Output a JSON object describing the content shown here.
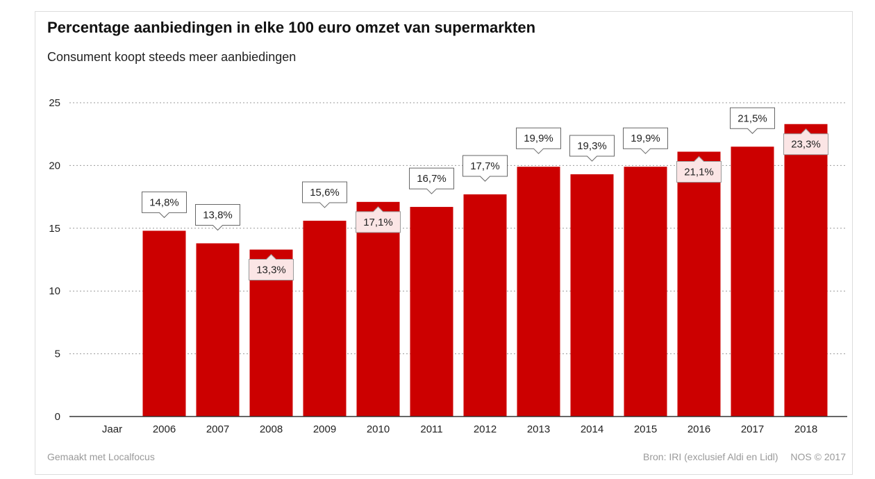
{
  "header": {
    "title": "Percentage aanbiedingen in elke 100 euro omzet van supermarkten",
    "subtitle": "Consument koopt steeds meer aanbiedingen"
  },
  "footer": {
    "made_with": "Gemaakt met Localfocus",
    "source": "Bron: IRI (exclusief Aldi en Lidl)",
    "copyright": "NOS © 2017"
  },
  "colors": {
    "bar": "#cc0000",
    "label_box_outside": "#ffffff",
    "label_box_inside": "#fbe5e5",
    "grid": "#999999"
  },
  "chart_data": {
    "type": "bar",
    "first_tick_label": "Jaar",
    "categories": [
      "2006",
      "2007",
      "2008",
      "2009",
      "2010",
      "2011",
      "2012",
      "2013",
      "2014",
      "2015",
      "2016",
      "2017",
      "2018"
    ],
    "values": [
      14.8,
      13.8,
      13.3,
      15.6,
      17.1,
      16.7,
      17.7,
      19.9,
      19.3,
      19.9,
      21.1,
      21.5,
      23.3
    ],
    "data_labels": [
      "14,8%",
      "13,8%",
      "13,3%",
      "15,6%",
      "17,1%",
      "16,7%",
      "17,7%",
      "19,9%",
      "19,3%",
      "19,9%",
      "21,1%",
      "21,5%",
      "23,3%"
    ],
    "label_inside_bar": [
      false,
      false,
      true,
      false,
      true,
      false,
      false,
      false,
      false,
      false,
      true,
      false,
      true
    ],
    "ylim": [
      0,
      25
    ],
    "yticks": [
      0,
      5,
      10,
      15,
      20,
      25
    ],
    "grid": true,
    "legend": "none"
  }
}
